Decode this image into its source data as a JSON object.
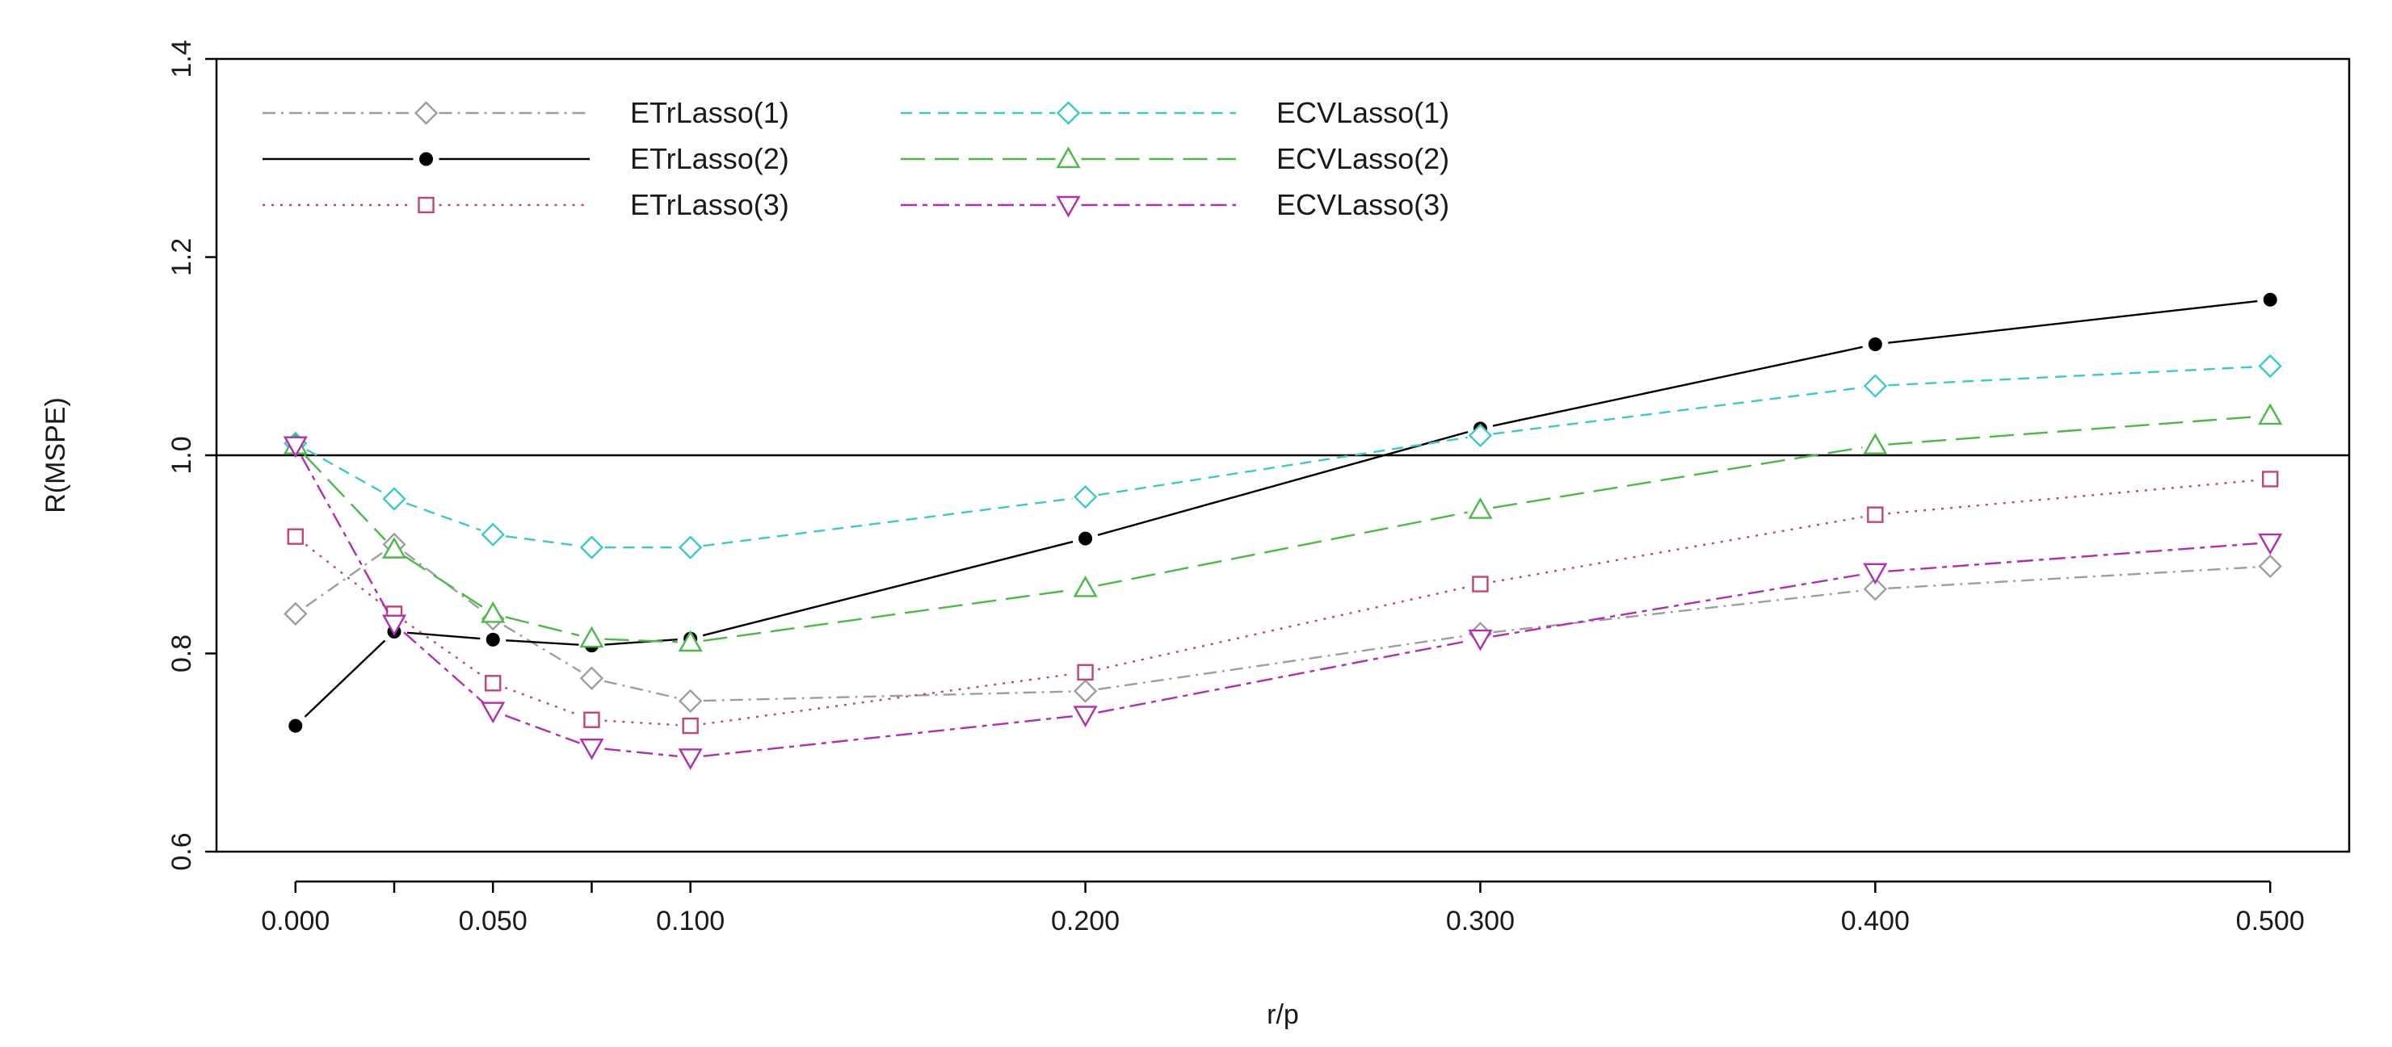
{
  "chart_data": {
    "type": "line",
    "title": "",
    "xlabel": "r/p",
    "ylabel": "R(MSPE)",
    "x": [
      0.0,
      0.025,
      0.05,
      0.075,
      0.1,
      0.2,
      0.3,
      0.4,
      0.5
    ],
    "x_tick_values": [
      0.0,
      0.05,
      0.1,
      0.2,
      0.3,
      0.4,
      0.5
    ],
    "x_tick_labels": [
      "0.000",
      "0.050",
      "0.100",
      "0.200",
      "0.300",
      "0.400",
      "0.500"
    ],
    "xlim": [
      -0.02,
      0.52
    ],
    "y_tick_values": [
      0.6,
      0.8,
      1.0,
      1.2,
      1.4
    ],
    "y_tick_labels": [
      "0.6",
      "0.8",
      "1.0",
      "1.2",
      "1.4"
    ],
    "ylim": [
      0.6,
      1.4
    ],
    "reference_line": 1.0,
    "legend_position": "top-left",
    "series": [
      {
        "name": "ETrLasso(1)",
        "color": "#9e9e9e",
        "dash": "dashdot",
        "marker": "diamond",
        "values": [
          0.84,
          0.91,
          0.835,
          0.775,
          0.752,
          0.762,
          0.82,
          0.865,
          0.888
        ]
      },
      {
        "name": "ETrLasso(2)",
        "color": "#000000",
        "dash": "solid",
        "marker": "dot",
        "values": [
          0.727,
          0.822,
          0.814,
          0.808,
          0.815,
          0.916,
          1.027,
          1.112,
          1.157
        ]
      },
      {
        "name": "ETrLasso(3)",
        "color": "#c2466b",
        "dash": "dotted",
        "marker": "square",
        "values": [
          0.918,
          0.84,
          0.77,
          0.733,
          0.727,
          0.781,
          0.87,
          0.94,
          0.976
        ]
      },
      {
        "name": "ECVLasso(1)",
        "color": "#3fc8c8",
        "dash": "dashed",
        "marker": "diamond",
        "values": [
          1.012,
          0.956,
          0.92,
          0.907,
          0.907,
          0.958,
          1.02,
          1.07,
          1.09
        ]
      },
      {
        "name": "ECVLasso(2)",
        "color": "#4cb848",
        "dash": "longdash",
        "marker": "triangle-up",
        "values": [
          1.01,
          0.905,
          0.84,
          0.815,
          0.811,
          0.866,
          0.945,
          1.01,
          1.04
        ]
      },
      {
        "name": "ECVLasso(3)",
        "color": "#b02fb0",
        "dash": "twodash",
        "marker": "triangle-down",
        "values": [
          1.01,
          0.83,
          0.742,
          0.705,
          0.695,
          0.738,
          0.815,
          0.882,
          0.912
        ]
      }
    ]
  }
}
